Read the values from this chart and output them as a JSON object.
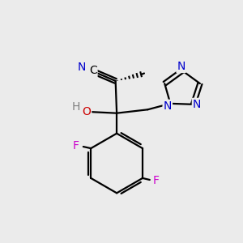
{
  "background_color": "#ebebeb",
  "bond_color": "#000000",
  "nitrogen_color": "#0000cc",
  "oxygen_color": "#cc0000",
  "fluorine_color": "#cc00cc",
  "gray_color": "#808080",
  "figsize": [
    3.0,
    3.0
  ],
  "dpi": 100,
  "xlim": [
    0,
    10
  ],
  "ylim": [
    0,
    10
  ]
}
